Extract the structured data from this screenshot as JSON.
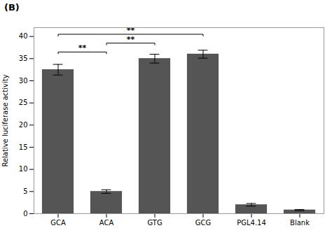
{
  "chart_data": {
    "type": "bar",
    "title": "(B)",
    "categories": [
      "GCA",
      "ACA",
      "GTG",
      "GCG",
      "PGL4.14",
      "Blank"
    ],
    "values": [
      32.5,
      5.0,
      35.0,
      36.0,
      2.0,
      0.8
    ],
    "errors": [
      1.2,
      0.4,
      1.0,
      0.9,
      0.3,
      0.15
    ],
    "color": "#555555",
    "ylabel": "Relative luciferase activity",
    "ylim": [
      0,
      42
    ],
    "yticks": [
      0,
      5,
      10,
      15,
      20,
      25,
      30,
      35,
      40
    ],
    "grid": false,
    "annotations": [
      {
        "text": "**",
        "x1": "GCA",
        "x2": "ACA",
        "y": 36.5
      },
      {
        "text": "**",
        "x1": "ACA",
        "x2": "GTG",
        "y": 38.5
      },
      {
        "text": "**",
        "x1": "GCA",
        "x2": "GCG",
        "y": 40.5
      }
    ]
  }
}
